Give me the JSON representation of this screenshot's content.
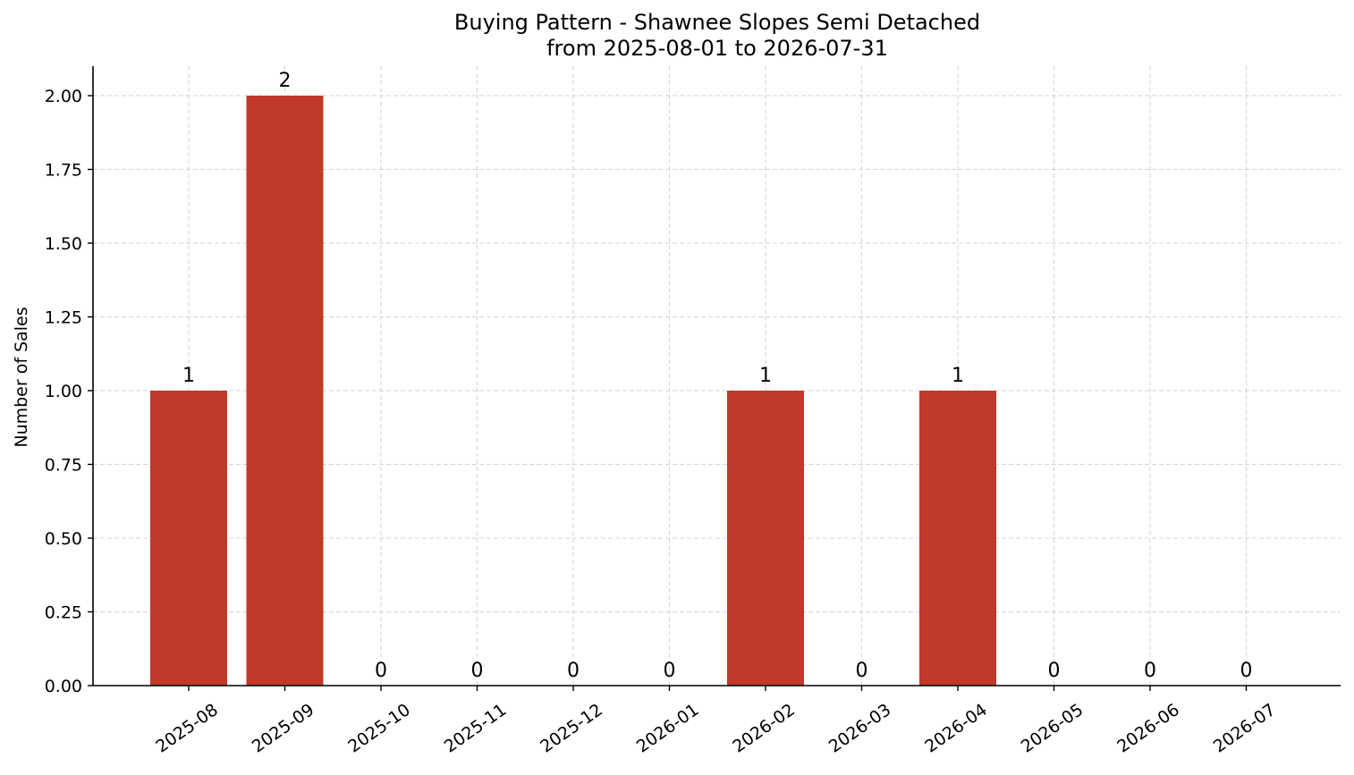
{
  "chart_data": {
    "type": "bar",
    "title_lines": [
      "Buying Pattern - Shawnee Slopes Semi Detached",
      "from 2025-08-01 to 2026-07-31"
    ],
    "xlabel": "",
    "ylabel": "Number of Sales",
    "categories": [
      "2025-08",
      "2025-09",
      "2025-10",
      "2025-11",
      "2025-12",
      "2026-01",
      "2026-02",
      "2026-03",
      "2026-04",
      "2026-05",
      "2026-06",
      "2026-07"
    ],
    "values": [
      1,
      2,
      0,
      0,
      0,
      0,
      1,
      0,
      1,
      0,
      0,
      0
    ],
    "data_labels": [
      "1",
      "2",
      "0",
      "0",
      "0",
      "0",
      "1",
      "0",
      "1",
      "0",
      "0",
      "0"
    ],
    "ylim": [
      0,
      2.1
    ],
    "yticks": [
      0,
      0.25,
      0.5,
      0.75,
      1.0,
      1.25,
      1.5,
      1.75,
      2.0
    ],
    "ytick_labels": [
      "0.00",
      "0.25",
      "0.50",
      "0.75",
      "1.00",
      "1.25",
      "1.50",
      "1.75",
      "2.00"
    ],
    "grid": true,
    "bar_color": "#c0392b"
  }
}
